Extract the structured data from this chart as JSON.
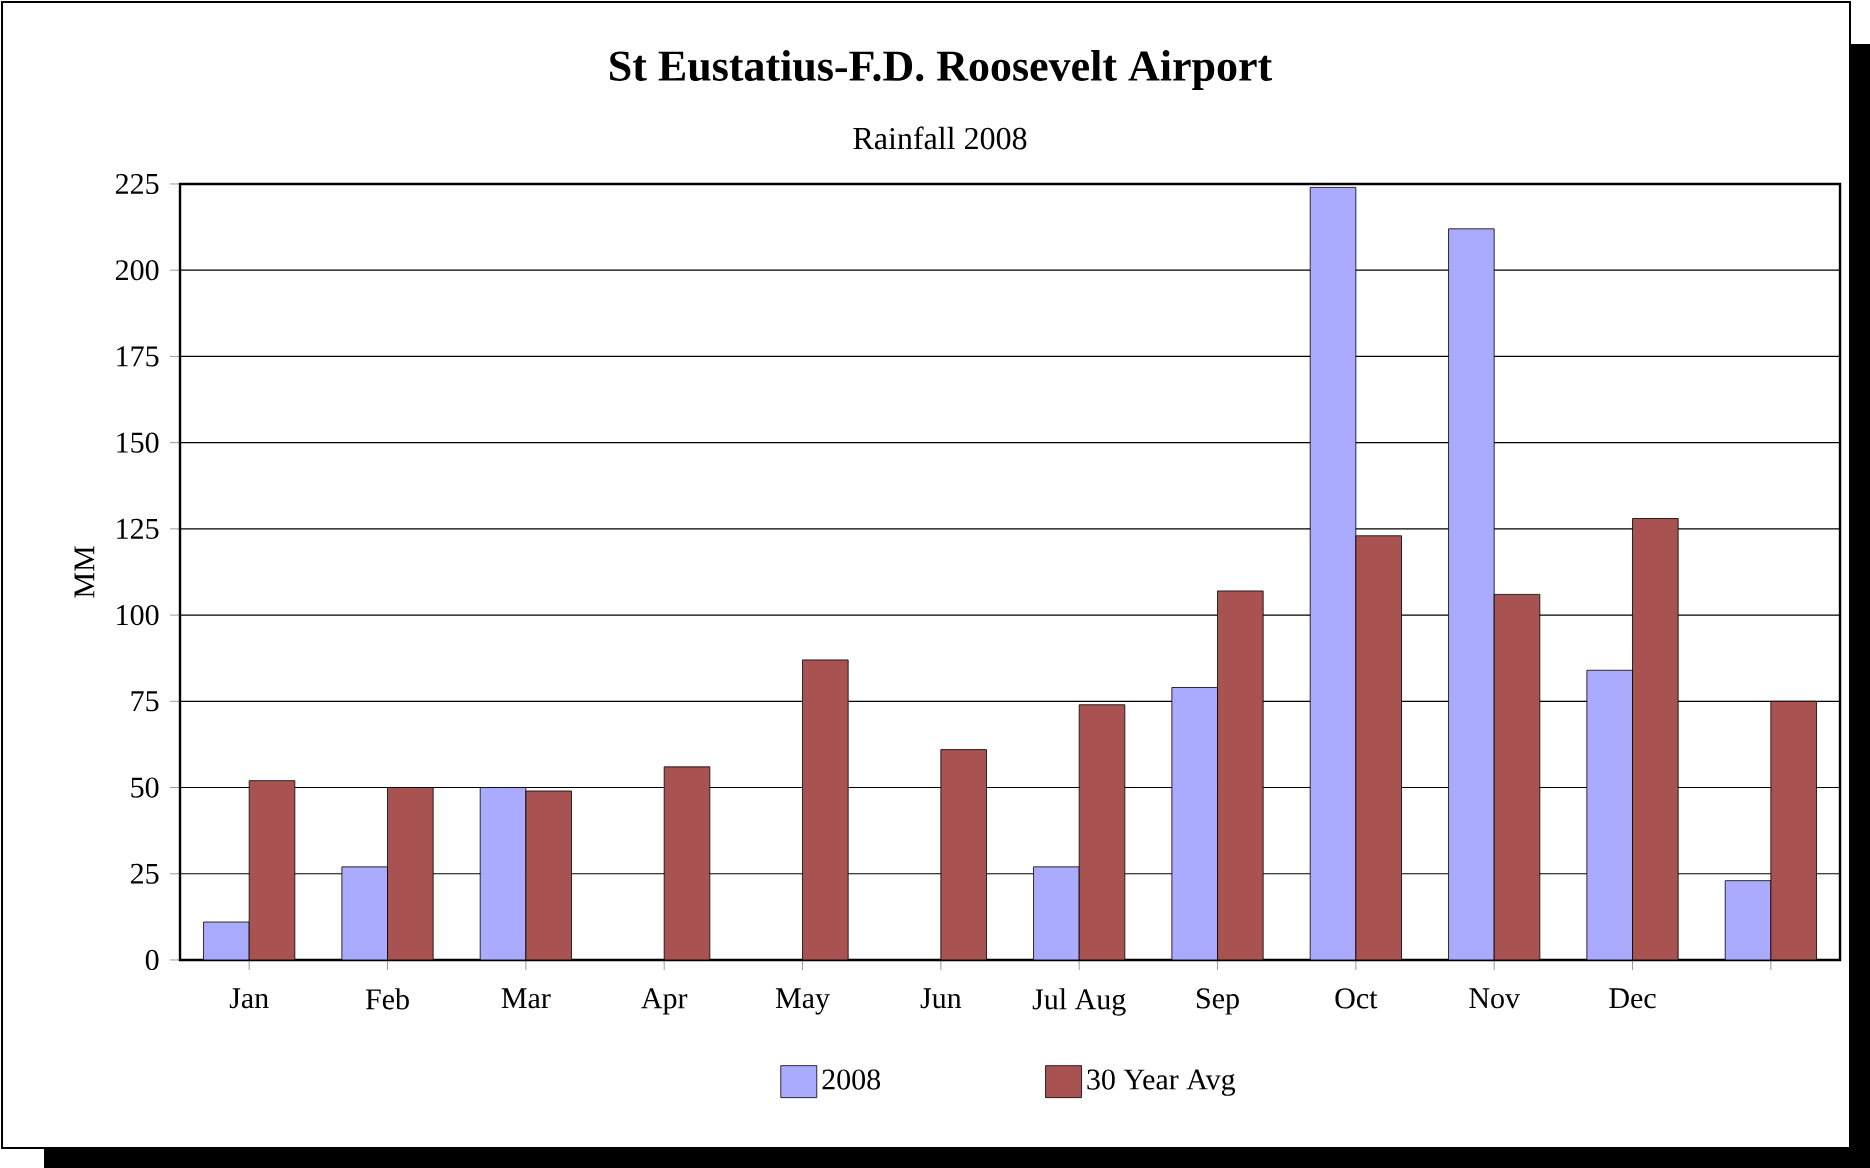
{
  "chart_data": {
    "type": "bar",
    "title": "St Eustatius-F.D. Roosevelt Airport",
    "subtitle": "Rainfall 2008",
    "ylabel": "MM",
    "categories": [
      "Jan",
      "Feb",
      "Mar",
      "Apr",
      "May",
      "Jun",
      "Jul Aug",
      "Sep",
      "Oct",
      "Nov",
      "Dec",
      null
    ],
    "series": [
      {
        "name": "2008",
        "color": "#aaaaff",
        "values": [
          11,
          27,
          50,
          null,
          null,
          null,
          27,
          79,
          224,
          212,
          84,
          23
        ]
      },
      {
        "name": "30 Year Avg",
        "color": "#a85252",
        "values": [
          52,
          50,
          49,
          56,
          87,
          61,
          74,
          107,
          123,
          106,
          128,
          75
        ]
      }
    ],
    "ylim": [
      0,
      225
    ],
    "yticks": [
      0,
      25,
      50,
      75,
      100,
      125,
      150,
      175,
      200,
      225
    ],
    "grid": "y",
    "legend": "bottom"
  }
}
